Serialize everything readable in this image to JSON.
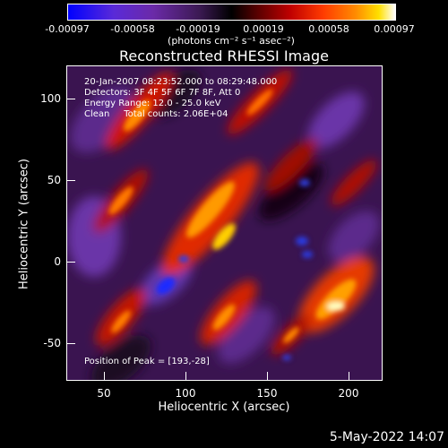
{
  "colorbar": {
    "ticks": [
      "-0.00097",
      "-0.00058",
      "-0.00019",
      "0.00019",
      "0.00058",
      "0.00097"
    ],
    "units": "(photons cm⁻² s⁻¹ asec⁻²)"
  },
  "title": "Reconstructed RHESSI Image",
  "annotations": {
    "time_range": "20-Jan-2007 08:23:52.000 to 08:29:48.000",
    "detectors": "Detectors: 3F 4F 5F 6F 7F 8F, Att 0",
    "energy_range": "Energy Range: 12.0 - 25.0 keV",
    "clean": "Clean     Total counts: 2.06E+04",
    "peak": "Position of Peak = [193,-28]"
  },
  "axes": {
    "xlabel": "Heliocentric X (arcsec)",
    "ylabel": "Heliocentric Y (arcsec)",
    "xticks": [
      "50",
      "100",
      "150",
      "200"
    ],
    "yticks": [
      "100",
      "50",
      "0",
      "-50"
    ]
  },
  "datestamp": "5-May-2022 14:07",
  "colors": {
    "background": "#000000",
    "foreground": "#ffffff"
  }
}
